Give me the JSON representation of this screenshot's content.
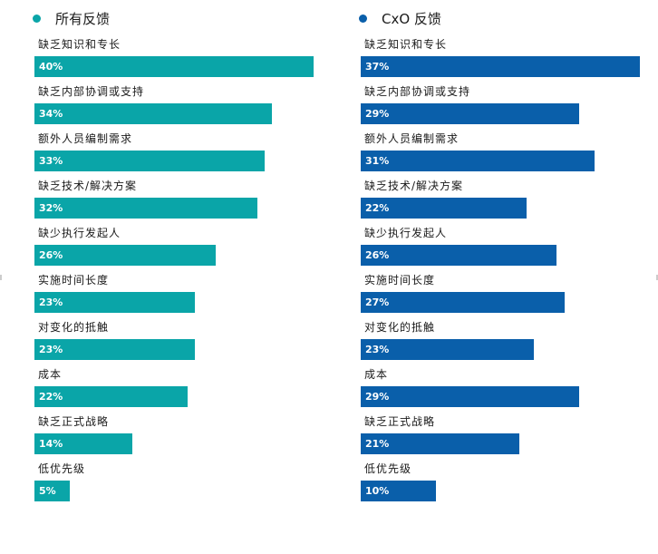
{
  "chart_data": [
    {
      "type": "bar",
      "orientation": "horizontal",
      "legend": "所有反馈",
      "color": "#0aa5a8",
      "categories": [
        "缺乏知识和专长",
        "缺乏内部协调或支持",
        "额外人员编制需求",
        "缺乏技术/解决方案",
        "缺少执行发起人",
        "实施时间长度",
        "对变化的抵触",
        "成本",
        "缺乏正式战略",
        "低优先级"
      ],
      "values": [
        40,
        34,
        33,
        32,
        26,
        23,
        23,
        22,
        14,
        5
      ],
      "value_labels": [
        "40%",
        "34%",
        "33%",
        "32%",
        "26%",
        "23%",
        "23%",
        "22%",
        "14%",
        "5%"
      ],
      "xlim": [
        0,
        40
      ]
    },
    {
      "type": "bar",
      "orientation": "horizontal",
      "legend": "CxO 反馈",
      "color": "#0a5faa",
      "categories": [
        "缺乏知识和专长",
        "缺乏内部协调或支持",
        "额外人员编制需求",
        "缺乏技术/解决方案",
        "缺少执行发起人",
        "实施时间长度",
        "对变化的抵触",
        "成本",
        "缺乏正式战略",
        "低优先级"
      ],
      "values": [
        37,
        29,
        31,
        22,
        26,
        27,
        23,
        29,
        21,
        10
      ],
      "value_labels": [
        "37%",
        "29%",
        "31%",
        "22%",
        "26%",
        "27%",
        "23%",
        "29%",
        "21%",
        "10%"
      ],
      "xlim": [
        0,
        37
      ]
    }
  ]
}
